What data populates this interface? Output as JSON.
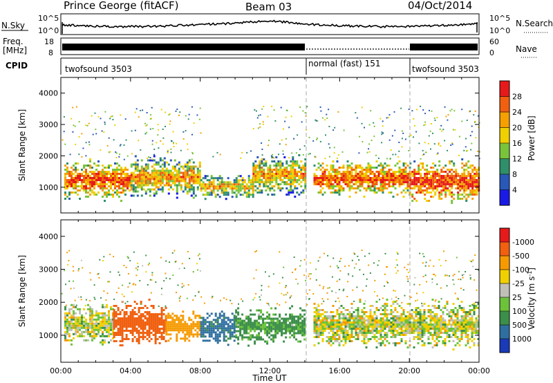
{
  "header": {
    "radar": "Prince George (fitACF)",
    "beam": "Beam 03",
    "date": "04/Oct/2014"
  },
  "noise_panel": {
    "left_label": "N.Sky",
    "right_label": "N.Search",
    "left_ticks": [
      "10^5",
      "10^0"
    ],
    "right_ticks": [
      "10^5",
      "10^0"
    ]
  },
  "freq_panel": {
    "left_label_1": "Freq.",
    "left_label_2": "[MHz]",
    "left_ticks": [
      "18",
      "8"
    ],
    "right_label": "Nave",
    "right_ticks": [
      "60",
      "0"
    ]
  },
  "cpid_panel": {
    "label": "CPID",
    "segments": [
      {
        "name": "twofsound 3503",
        "start_hour": 0,
        "end_hour": 14
      },
      {
        "name": "normal (fast) 151",
        "start_hour": 14,
        "end_hour": 20
      },
      {
        "name": "twofsound 3503",
        "start_hour": 20,
        "end_hour": 24
      }
    ]
  },
  "power_panel": {
    "ylabel": "Slant Range [km]",
    "y_ticks": [
      "1000",
      "2000",
      "3000",
      "4000"
    ],
    "colorbar_label": "Power [dB]",
    "colorbar_ticks": [
      "4",
      "8",
      "12",
      "16",
      "20",
      "24",
      "28"
    ],
    "colorbar_colors": [
      "#1a1ae6",
      "#2a58b8",
      "#2f8f6a",
      "#79c43a",
      "#f0d000",
      "#f5a000",
      "#f06010",
      "#e61a1a"
    ]
  },
  "velocity_panel": {
    "ylabel": "Slant Range [km]",
    "y_ticks": [
      "1000",
      "2000",
      "3000",
      "4000"
    ],
    "colorbar_label": "Velocity [m s",
    "colorbar_label_sup": "-1",
    "colorbar_label_end": "]",
    "colorbar_ticks": [
      "1000",
      "500",
      "100",
      "25",
      "-25",
      "-100",
      "-500",
      "-1000"
    ],
    "colorbar_colors": [
      "#1a3ab8",
      "#2f6fa0",
      "#3c8f4a",
      "#6cc33a",
      "#c0c0b8",
      "#f0d000",
      "#f59a00",
      "#f06010",
      "#e61a1a"
    ]
  },
  "x_axis": {
    "xlabel": "Time UT",
    "ticks": [
      "00:00",
      "04:00",
      "08:00",
      "12:00",
      "16:00",
      "20:00",
      "00:00"
    ]
  },
  "chart_data": {
    "type": "heatmap",
    "title": "Prince George (fitACF)   Beam 03   04/Oct/2014",
    "xlabel": "Time UT",
    "ylabel": "Slant Range [km]",
    "xlim": [
      0,
      24
    ],
    "ylim": [
      180,
      4500
    ],
    "x_ticks": [
      "00:00",
      "04:00",
      "08:00",
      "12:00",
      "16:00",
      "20:00",
      "00:00"
    ],
    "y_ticks": [
      1000,
      2000,
      3000,
      4000
    ],
    "mode_change_hours": [
      14,
      20
    ],
    "panels": [
      {
        "name": "Power",
        "unit": "dB",
        "range": [
          0,
          30
        ],
        "dominant_echo_bands": [
          {
            "start_hour": 0.2,
            "end_hour": 4.0,
            "range_low_km": 800,
            "range_high_km": 1700,
            "typical_value": 26
          },
          {
            "start_hour": 4.0,
            "end_hour": 8.0,
            "range_low_km": 900,
            "range_high_km": 1800,
            "typical_value": 22
          },
          {
            "start_hour": 8.0,
            "end_hour": 11.0,
            "range_low_km": 800,
            "range_high_km": 1300,
            "typical_value": 20
          },
          {
            "start_hour": 11.0,
            "end_hour": 14.0,
            "range_low_km": 900,
            "range_high_km": 1900,
            "typical_value": 22
          },
          {
            "start_hour": 14.5,
            "end_hour": 20.0,
            "range_low_km": 900,
            "range_high_km": 1700,
            "typical_value": 26
          },
          {
            "start_hour": 20.0,
            "end_hour": 24.0,
            "range_low_km": 700,
            "range_high_km": 1700,
            "typical_value": 28
          }
        ]
      },
      {
        "name": "Velocity",
        "unit": "m s^-1",
        "range": [
          -1000,
          1000
        ],
        "dominant_echo_bands": [
          {
            "start_hour": 0.2,
            "end_hour": 3.0,
            "range_low_km": 900,
            "range_high_km": 1800,
            "typical_value": 0
          },
          {
            "start_hour": 3.0,
            "end_hour": 6.0,
            "range_low_km": 900,
            "range_high_km": 1900,
            "typical_value": -700
          },
          {
            "start_hour": 6.0,
            "end_hour": 8.0,
            "range_low_km": 1000,
            "range_high_km": 1600,
            "typical_value": -300
          },
          {
            "start_hour": 8.0,
            "end_hour": 10.0,
            "range_low_km": 900,
            "range_high_km": 1600,
            "typical_value": 600
          },
          {
            "start_hour": 10.0,
            "end_hour": 14.0,
            "range_low_km": 900,
            "range_high_km": 1700,
            "typical_value": 150
          },
          {
            "start_hour": 14.5,
            "end_hour": 24.0,
            "range_low_km": 800,
            "range_high_km": 1900,
            "typical_value": 0
          }
        ]
      }
    ]
  }
}
